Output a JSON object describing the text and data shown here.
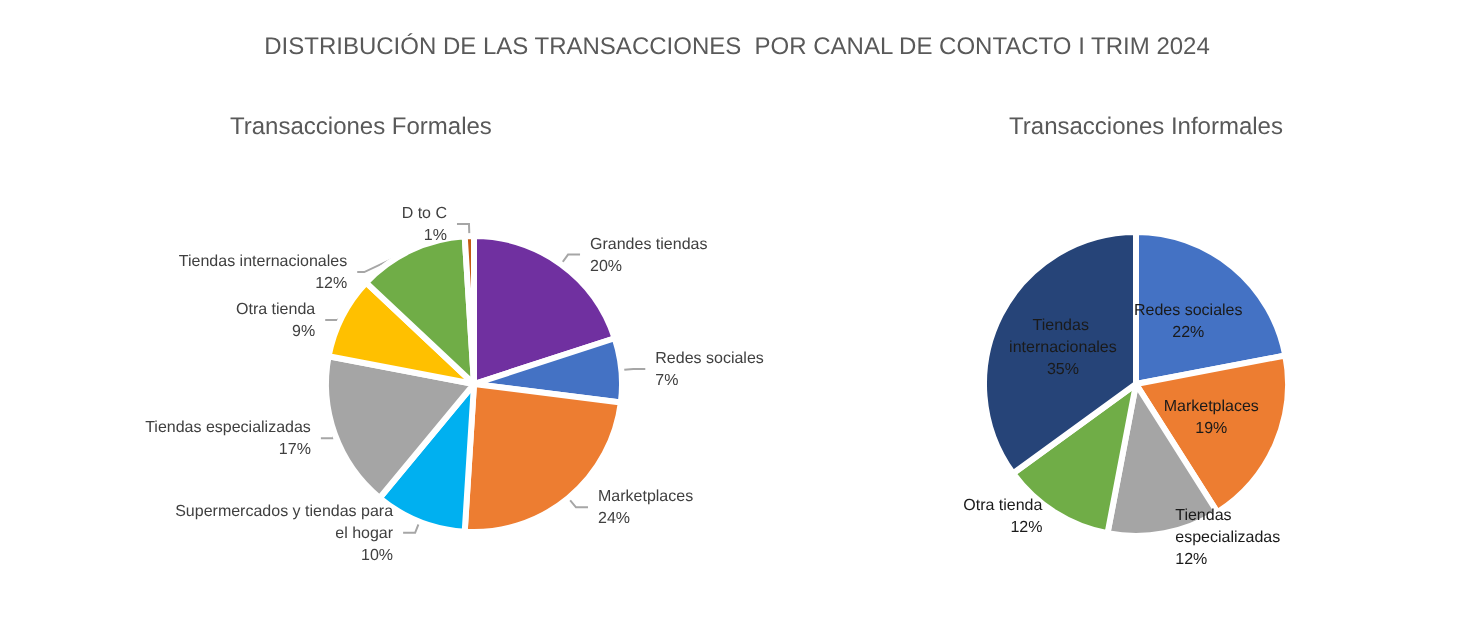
{
  "chart_data": [
    {
      "type": "pie",
      "title": "DISTRIBUCIÓN DE LAS TRANSACCIONES  POR CANAL DE CONTACTO I TRIM 2024",
      "subtitle": "Transacciones Formales",
      "categories": [
        "Grandes tiendas",
        "Redes sociales",
        "Marketplaces",
        "Supermercados y tiendas para el hogar",
        "Tiendas especializadas",
        "Otra tienda",
        "Tiendas internacionales",
        "D to C"
      ],
      "values": [
        20,
        7,
        24,
        10,
        17,
        9,
        12,
        1
      ],
      "colors": [
        "#7030a0",
        "#4472c4",
        "#ed7d31",
        "#00b0f0",
        "#a5a5a5",
        "#ffc000",
        "#70ad47",
        "#c55a11"
      ],
      "value_labels": [
        "20%",
        "7%",
        "24%",
        "10%",
        "17%",
        "9%",
        "12%",
        "1%"
      ],
      "legend": false
    },
    {
      "type": "pie",
      "title": "Transacciones Informales",
      "categories": [
        "Redes sociales",
        "Marketplaces",
        "Tiendas especializadas",
        "Otra tienda",
        "Tiendas internacionales"
      ],
      "values": [
        22,
        19,
        12,
        12,
        35
      ],
      "colors": [
        "#4472c4",
        "#ed7d31",
        "#a5a5a5",
        "#70ad47",
        "#264478"
      ],
      "value_labels": [
        "22%",
        "19%",
        "12%",
        "12%",
        "35%"
      ],
      "legend": false
    }
  ]
}
